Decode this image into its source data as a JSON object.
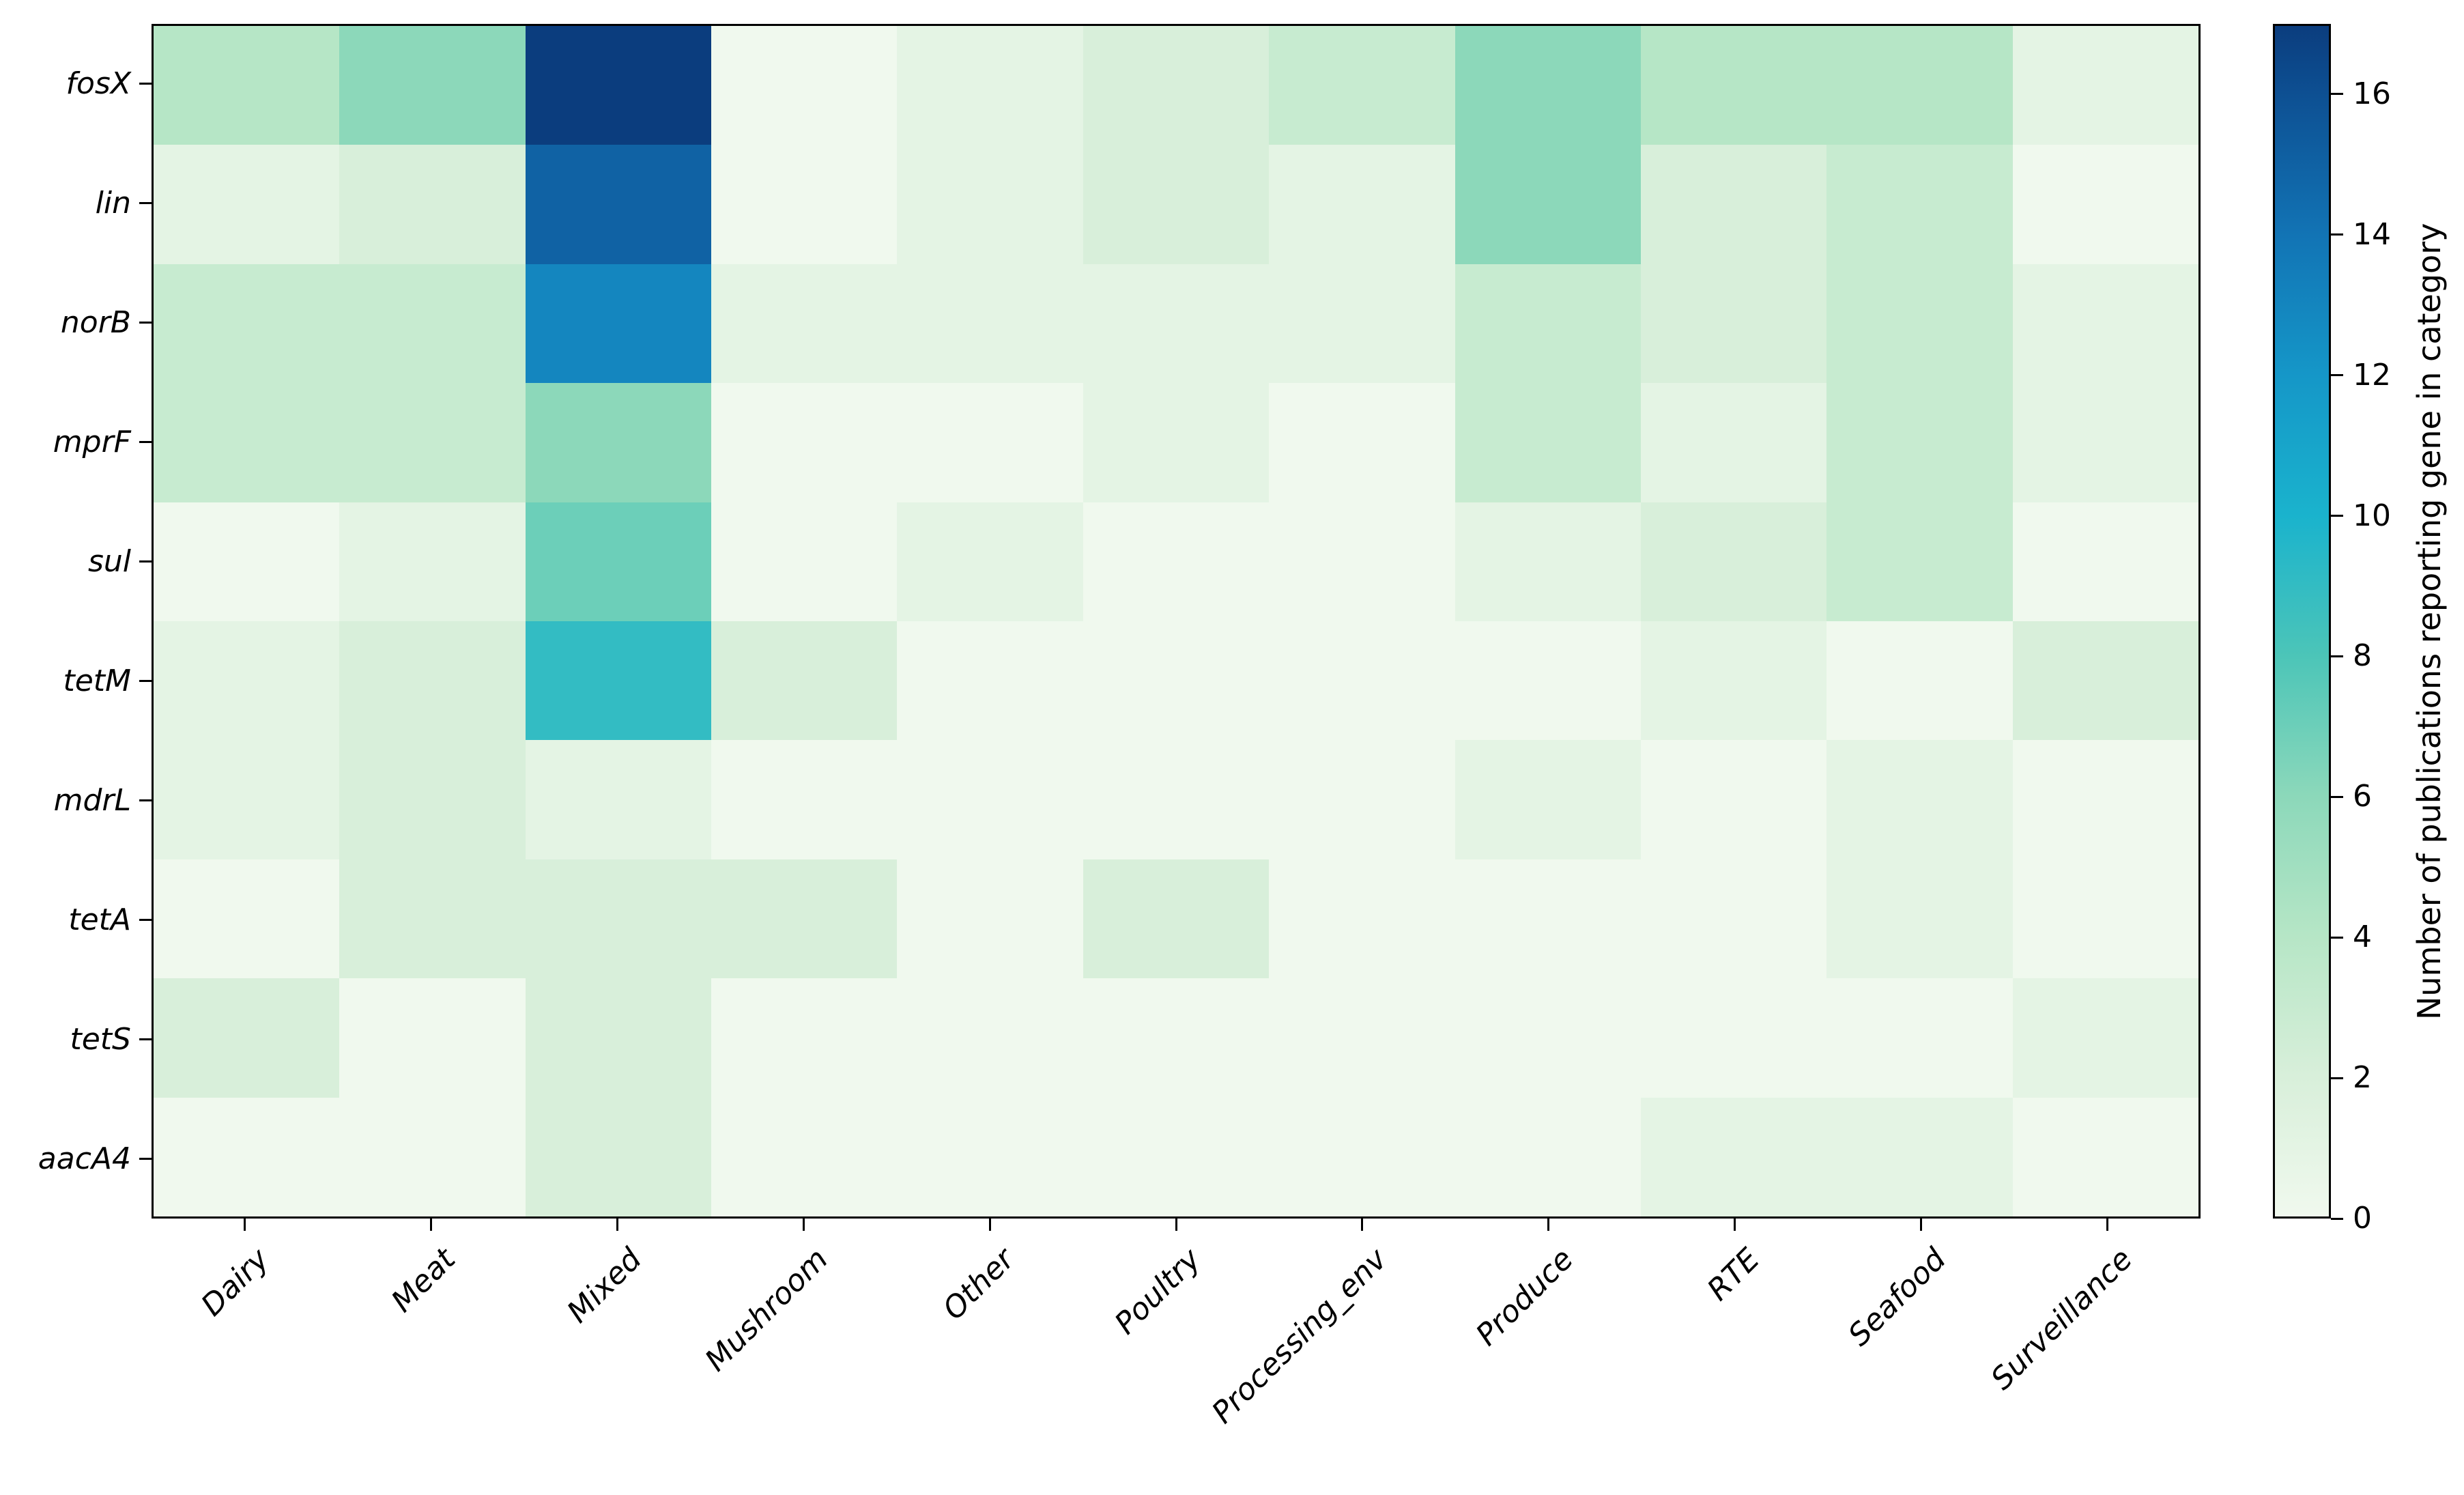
{
  "figure": {
    "background": "#ffffff"
  },
  "chart_data": {
    "type": "heatmap",
    "rows": [
      "fosX",
      "lin",
      "norB",
      "mprF",
      "sul",
      "tetM",
      "mdrL",
      "tetA",
      "tetS",
      "aacA4"
    ],
    "columns": [
      "Dairy",
      "Meat",
      "Mixed",
      "Mushroom",
      "Other",
      "Poultry",
      "Processing_env",
      "Produce",
      "RTE",
      "Seafood",
      "Surveillance"
    ],
    "matrix": [
      [
        4,
        6,
        17,
        0,
        1,
        2,
        3,
        6,
        4,
        4,
        1
      ],
      [
        1,
        2,
        15,
        0,
        1,
        2,
        1,
        6,
        2,
        3,
        0
      ],
      [
        3,
        3,
        13,
        1,
        1,
        1,
        1,
        3,
        2,
        3,
        1
      ],
      [
        3,
        3,
        6,
        0,
        0,
        1,
        0,
        3,
        1,
        3,
        1
      ],
      [
        0,
        1,
        7,
        0,
        1,
        0,
        0,
        1,
        2,
        3,
        0
      ],
      [
        1,
        2,
        9,
        2,
        0,
        0,
        0,
        0,
        1,
        0,
        2
      ],
      [
        1,
        2,
        1,
        0,
        0,
        0,
        0,
        1,
        0,
        1,
        0
      ],
      [
        0,
        2,
        2,
        2,
        0,
        2,
        0,
        0,
        0,
        1,
        0
      ],
      [
        2,
        0,
        2,
        0,
        0,
        0,
        0,
        0,
        0,
        0,
        1
      ],
      [
        0,
        0,
        2,
        0,
        0,
        0,
        0,
        0,
        1,
        1,
        0
      ]
    ],
    "vmin": 0,
    "vmax": 17,
    "grid": false,
    "legend_position": "right-colorbar",
    "colorbar": {
      "label": "Number of publications reporting gene in category",
      "ticks": [
        0,
        2,
        4,
        6,
        8,
        10,
        12,
        14,
        16
      ]
    },
    "colormap_stops": [
      {
        "value": 0,
        "color": "#f0f9ee"
      },
      {
        "value": 2,
        "color": "#d8efda"
      },
      {
        "value": 4,
        "color": "#b6e6c6"
      },
      {
        "value": 6,
        "color": "#8cd8ba"
      },
      {
        "value": 8,
        "color": "#4cc5b8"
      },
      {
        "value": 10,
        "color": "#1ab3cd"
      },
      {
        "value": 12,
        "color": "#1597c8"
      },
      {
        "value": 14,
        "color": "#1274b5"
      },
      {
        "value": 16,
        "color": "#0d5093"
      },
      {
        "value": 17,
        "color": "#0b3d7e"
      }
    ],
    "axis_colors": {
      "spine": "#000000",
      "tick": "#000000",
      "text": "#000000"
    }
  }
}
